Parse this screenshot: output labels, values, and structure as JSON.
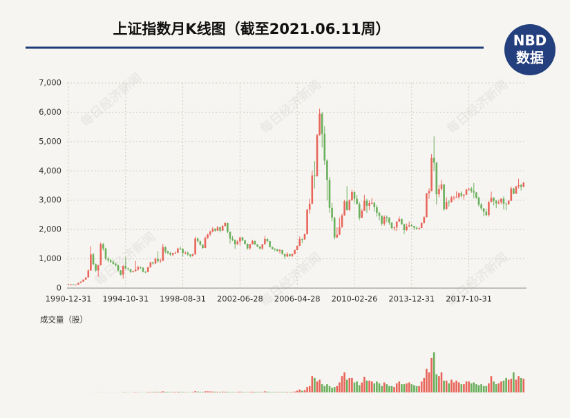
{
  "chart_data": {
    "type": "candlestick",
    "title": "上证指数月K线图（截至2021.06.11周）",
    "volume_label": "成交量（股）",
    "up_color": "#e8655a",
    "down_color": "#6aaf5c",
    "grid": true,
    "ylim": [
      0,
      7000
    ],
    "yticks": [
      0,
      {
        "value": 1000,
        "label": "1,000"
      },
      {
        "value": 2000,
        "label": "2,000"
      },
      {
        "value": 3000,
        "label": "3,000"
      },
      {
        "value": 4000,
        "label": "4,000"
      },
      {
        "value": 5000,
        "label": "5,000"
      },
      {
        "value": 6000,
        "label": "6,000"
      },
      {
        "value": 7000,
        "label": "7,000"
      }
    ],
    "categories": [
      "1990-12-31",
      null,
      null,
      null,
      null,
      null,
      null,
      null,
      null,
      null,
      null,
      null,
      null,
      null,
      null,
      null,
      null,
      null,
      null,
      null,
      null,
      null,
      null,
      "1994-10-31",
      null,
      null,
      null,
      null,
      null,
      null,
      null,
      null,
      null,
      null,
      null,
      null,
      null,
      null,
      null,
      null,
      null,
      null,
      null,
      null,
      null,
      null,
      "1998-08-31",
      null,
      null,
      null,
      null,
      null,
      null,
      null,
      null,
      null,
      null,
      null,
      null,
      null,
      null,
      null,
      null,
      null,
      null,
      null,
      null,
      null,
      null,
      "2002-06-28",
      null,
      null,
      null,
      null,
      null,
      null,
      null,
      null,
      null,
      null,
      null,
      null,
      null,
      null,
      null,
      null,
      null,
      null,
      null,
      null,
      null,
      null,
      "2006-04-28",
      null,
      null,
      null,
      null,
      null,
      null,
      null,
      null,
      null,
      null,
      null,
      null,
      null,
      null,
      null,
      null,
      null,
      null,
      null,
      null,
      null,
      null,
      "2010-02-26",
      null,
      null,
      null,
      null,
      null,
      null,
      null,
      null,
      null,
      null,
      null,
      null,
      null,
      null,
      null,
      null,
      null,
      null,
      null,
      null,
      null,
      null,
      "2013-12-31",
      null,
      null,
      null,
      null,
      null,
      null,
      null,
      null,
      null,
      null,
      null,
      null,
      null,
      null,
      null,
      null,
      null,
      null,
      null,
      null,
      null,
      null,
      "2017-10-31",
      null,
      null,
      null,
      null,
      null,
      null,
      null,
      null,
      null,
      null,
      null,
      null,
      null,
      null,
      null,
      null,
      null,
      null,
      null,
      null,
      null,
      null
    ],
    "open": [
      100,
      127,
      130,
      115,
      120,
      180,
      220,
      292,
      365,
      600,
      1150,
      820,
      600,
      780,
      1500,
      1350,
      1000,
      950,
      900,
      833,
      780,
      600,
      460,
      750,
      670,
      648,
      550,
      580,
      630,
      720,
      700,
      555,
      550,
      710,
      880,
      840,
      1000,
      917,
      930,
      1400,
      1250,
      1200,
      1140,
      1194,
      1206,
      1350,
      1340,
      1200,
      1210,
      1147,
      1090,
      1150,
      1690,
      1600,
      1480,
      1367,
      1710,
      1830,
      1930,
      2020,
      1960,
      2073,
      1960,
      2120,
      2218,
      1920,
      1690,
      1646,
      1500,
      1590,
      1730,
      1630,
      1510,
      1357,
      1500,
      1600,
      1490,
      1420,
      1350,
      1497,
      1675,
      1600,
      1400,
      1340,
      1320,
      1266,
      1300,
      1160,
      1080,
      1160,
      1090,
      1161,
      1300,
      1440,
      1670,
      1660,
      1840,
      2675,
      2880,
      3840,
      3820,
      5220,
      5950,
      5262,
      4350,
      3690,
      2740,
      2400,
      1730,
      1821,
      2080,
      2480,
      2960,
      2670,
      2995,
      3277,
      3050,
      2870,
      2400,
      2640,
      2980,
      2808,
      2900,
      2910,
      2760,
      2570,
      2470,
      2199,
      2430,
      2400,
      2230,
      2050,
      2070,
      2269,
      2360,
      2180,
      1980,
      2100,
      2140,
      2116,
      2060,
      2030,
      2050,
      2220,
      2420,
      3235,
      3310,
      4440,
      4280,
      3200,
      3380,
      3539,
      2690,
      2940,
      2930,
      3090,
      3100,
      3104,
      3240,
      3150,
      3190,
      3360,
      3390,
      3307,
      3260,
      3080,
      2850,
      2720,
      2600,
      2494,
      2940,
      3080,
      2980,
      2890,
      2930,
      3050,
      2880,
      2860,
      2980,
      3400,
      3220,
      3473,
      3510,
      3450
    ],
    "close": [
      127,
      130,
      115,
      120,
      180,
      220,
      292,
      365,
      600,
      1150,
      820,
      600,
      780,
      1500,
      1350,
      1000,
      950,
      900,
      833,
      780,
      600,
      460,
      750,
      670,
      648,
      550,
      580,
      630,
      720,
      700,
      555,
      550,
      710,
      880,
      840,
      1000,
      917,
      930,
      1400,
      1250,
      1200,
      1140,
      1194,
      1206,
      1350,
      1340,
      1200,
      1210,
      1147,
      1090,
      1150,
      1690,
      1600,
      1480,
      1367,
      1710,
      1830,
      1930,
      2020,
      1960,
      2073,
      1960,
      2120,
      2218,
      1920,
      1690,
      1646,
      1500,
      1590,
      1730,
      1630,
      1510,
      1357,
      1500,
      1600,
      1490,
      1420,
      1350,
      1497,
      1675,
      1600,
      1400,
      1340,
      1320,
      1266,
      1300,
      1160,
      1080,
      1160,
      1090,
      1161,
      1300,
      1440,
      1670,
      1660,
      1840,
      2675,
      2880,
      3840,
      3820,
      5220,
      5950,
      5262,
      4350,
      3690,
      2740,
      2400,
      1730,
      1821,
      2080,
      2480,
      2960,
      2670,
      2995,
      3277,
      3050,
      2870,
      2400,
      2640,
      2980,
      2808,
      2900,
      2910,
      2760,
      2570,
      2470,
      2199,
      2430,
      2400,
      2230,
      2050,
      2070,
      2269,
      2360,
      2180,
      1980,
      2100,
      2140,
      2116,
      2060,
      2030,
      2050,
      2220,
      2420,
      3235,
      3310,
      4440,
      4280,
      3200,
      3380,
      3539,
      2690,
      2940,
      2930,
      3090,
      3100,
      3104,
      3240,
      3150,
      3190,
      3360,
      3390,
      3307,
      3260,
      3080,
      2850,
      2720,
      2600,
      2494,
      2940,
      3080,
      2980,
      2890,
      2930,
      3050,
      2880,
      2860,
      2980,
      3400,
      3220,
      3473,
      3510,
      3450,
      3590
    ],
    "high": [
      130,
      135,
      134,
      125,
      185,
      230,
      295,
      370,
      640,
      1429,
      1200,
      840,
      800,
      1558,
      1540,
      1380,
      1060,
      1000,
      960,
      860,
      800,
      620,
      780,
      1052,
      700,
      660,
      600,
      926,
      760,
      740,
      710,
      580,
      730,
      900,
      900,
      1040,
      1258,
      1000,
      1510,
      1420,
      1280,
      1230,
      1210,
      1250,
      1380,
      1420,
      1360,
      1260,
      1250,
      1160,
      1180,
      1756,
      1720,
      1620,
      1500,
      1760,
      1850,
      1960,
      2080,
      2040,
      2120,
      2100,
      2150,
      2245,
      2230,
      1930,
      1780,
      1660,
      1640,
      1750,
      1750,
      1650,
      1520,
      1510,
      1650,
      1630,
      1500,
      1430,
      1510,
      1780,
      1700,
      1610,
      1420,
      1370,
      1340,
      1330,
      1310,
      1170,
      1220,
      1170,
      1180,
      1310,
      1450,
      1760,
      1700,
      1860,
      2700,
      3050,
      4000,
      4330,
      5260,
      6124,
      6000,
      5520,
      4400,
      3790,
      2900,
      2430,
      2070,
      2400,
      2530,
      3000,
      3478,
      3030,
      3360,
      3300,
      3180,
      2940,
      2700,
      3186,
      3050,
      2990,
      3070,
      2940,
      2830,
      2600,
      2480,
      2480,
      2480,
      2420,
      2250,
      2110,
      2280,
      2440,
      2370,
      2200,
      2200,
      2270,
      2200,
      2120,
      2100,
      2080,
      2250,
      2450,
      3240,
      3400,
      4570,
      5178,
      4300,
      3520,
      3680,
      3540,
      3100,
      3000,
      3140,
      3150,
      3300,
      3260,
      3300,
      3200,
      3380,
      3420,
      3450,
      3587,
      3280,
      3120,
      2900,
      2730,
      2700,
      2960,
      3290,
      3100,
      3000,
      3020,
      3070,
      3130,
      2920,
      3000,
      3460,
      3420,
      3480,
      3731,
      3560,
      3630
    ],
    "low": [
      96,
      120,
      105,
      108,
      118,
      175,
      215,
      285,
      360,
      590,
      780,
      560,
      386,
      770,
      1280,
      950,
      880,
      850,
      800,
      740,
      560,
      430,
      325,
      640,
      600,
      520,
      530,
      560,
      600,
      660,
      540,
      512,
      540,
      700,
      800,
      820,
      860,
      870,
      920,
      1180,
      1150,
      1100,
      1090,
      1160,
      1200,
      1300,
      1070,
      1150,
      1110,
      1050,
      1080,
      1140,
      1560,
      1450,
      1340,
      1360,
      1680,
      1780,
      1900,
      1920,
      1950,
      1900,
      1950,
      2100,
      1880,
      1520,
      1600,
      1340,
      1480,
      1460,
      1600,
      1490,
      1310,
      1310,
      1490,
      1480,
      1400,
      1310,
      1310,
      1490,
      1560,
      1390,
      1310,
      1260,
      1250,
      1180,
      1140,
      998,
      1060,
      1070,
      1070,
      1150,
      1290,
      1430,
      1540,
      1650,
      1830,
      2540,
      2870,
      3400,
      3800,
      5200,
      4800,
      4200,
      2990,
      2570,
      2280,
      1664,
      1700,
      1810,
      2060,
      2470,
      2640,
      2630,
      2980,
      2890,
      2850,
      2320,
      2380,
      2630,
      2570,
      2660,
      2860,
      2610,
      2440,
      2310,
      2130,
      2130,
      2250,
      2160,
      2010,
      1960,
      1950,
      2270,
      2160,
      1850,
      1950,
      2090,
      2090,
      1980,
      1990,
      1990,
      2040,
      2200,
      2410,
      3050,
      3300,
      4000,
      2850,
      3100,
      3330,
      2638,
      2680,
      2780,
      2920,
      3000,
      3080,
      3050,
      3090,
      3020,
      3180,
      3320,
      3250,
      3060,
      3050,
      2780,
      2650,
      2450,
      2450,
      2440,
      2930,
      2820,
      2730,
      2860,
      2860,
      2680,
      2650,
      2840,
      2970,
      3200,
      3210,
      3400,
      3330,
      3440
    ],
    "volume": [
      0.1,
      0.1,
      0.1,
      0.2,
      0.3,
      0.5,
      0.6,
      1,
      2,
      4,
      3,
      3,
      4,
      8,
      6,
      5,
      4,
      4,
      5,
      4,
      5,
      4,
      15,
      20,
      8,
      8,
      9,
      25,
      12,
      10,
      8,
      10,
      25,
      30,
      25,
      40,
      30,
      35,
      60,
      35,
      30,
      25,
      25,
      30,
      40,
      30,
      25,
      20,
      20,
      15,
      25,
      70,
      50,
      35,
      30,
      60,
      65,
      55,
      50,
      40,
      40,
      35,
      45,
      40,
      30,
      25,
      25,
      20,
      30,
      45,
      30,
      25,
      20,
      30,
      40,
      35,
      30,
      25,
      35,
      60,
      45,
      30,
      25,
      25,
      25,
      20,
      30,
      25,
      30,
      30,
      25,
      50,
      100,
      160,
      90,
      130,
      300,
      350,
      900,
      800,
      600,
      700,
      450,
      350,
      450,
      350,
      250,
      300,
      350,
      550,
      900,
      1100,
      700,
      800,
      800,
      550,
      600,
      400,
      550,
      850,
      650,
      650,
      600,
      500,
      600,
      500,
      350,
      550,
      450,
      350,
      350,
      300,
      500,
      600,
      450,
      450,
      500,
      550,
      450,
      400,
      350,
      350,
      600,
      800,
      1300,
      1100,
      1900,
      2200,
      1000,
      900,
      1100,
      650,
      650,
      500,
      700,
      550,
      650,
      550,
      450,
      450,
      600,
      600,
      500,
      550,
      450,
      400,
      450,
      350,
      350,
      500,
      900,
      600,
      450,
      500,
      600,
      650,
      800,
      700,
      750,
      1100,
      700,
      900,
      800,
      750
    ]
  },
  "logo": {
    "top": "NBD",
    "bottom": "数据"
  },
  "watermark": "每日经济新闻"
}
